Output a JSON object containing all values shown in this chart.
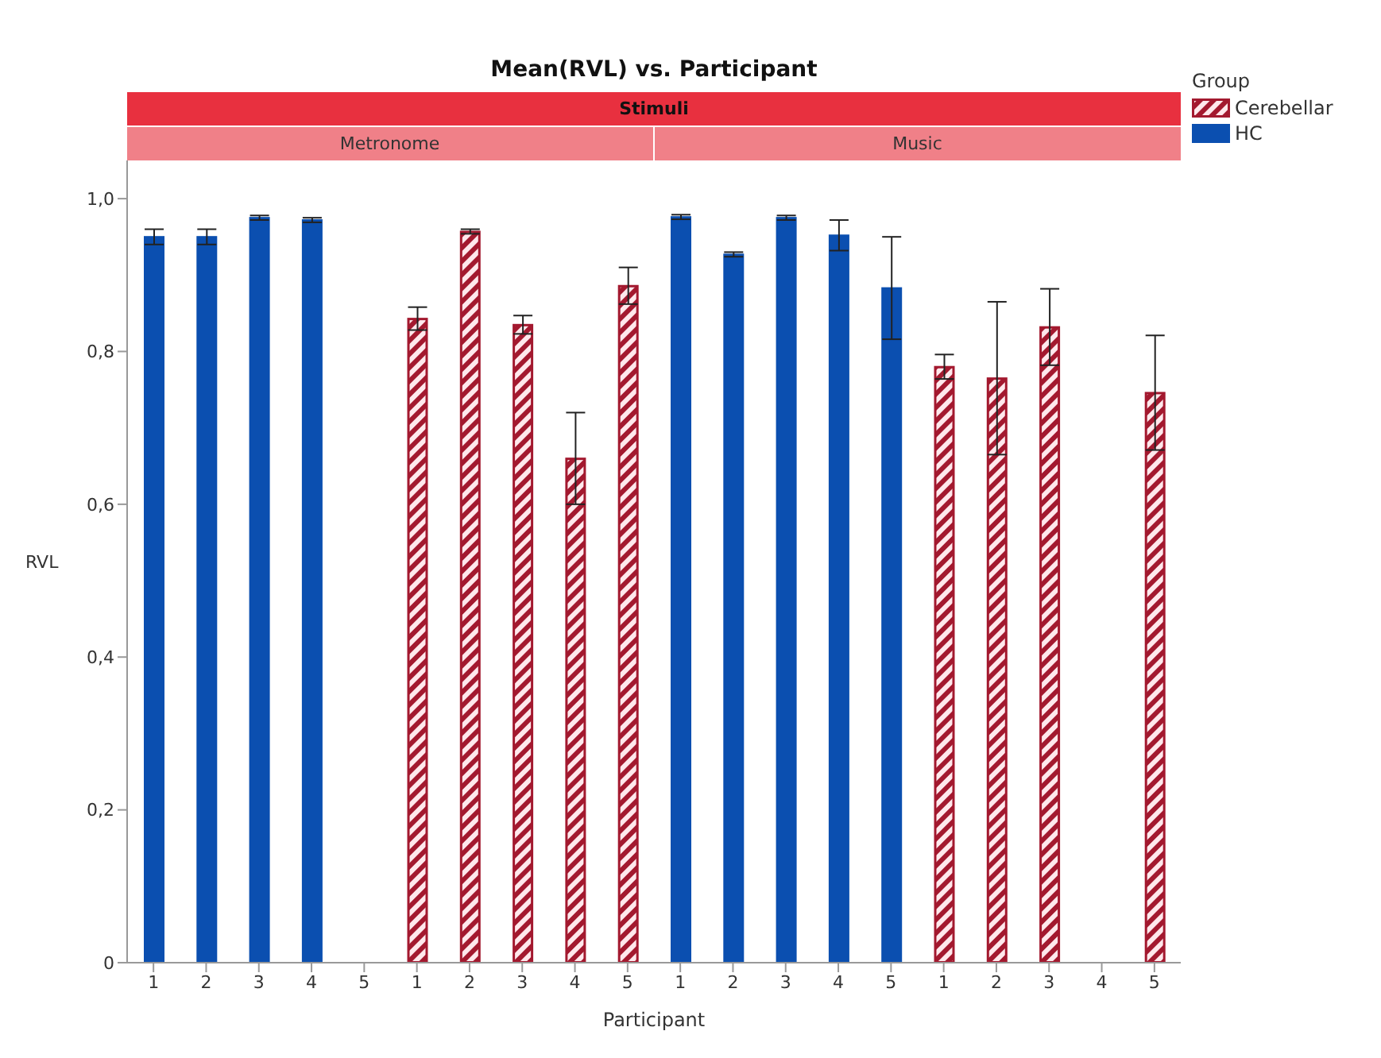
{
  "chart_data": {
    "type": "bar",
    "title": "Mean(RVL) vs. Participant",
    "xlabel": "Participant",
    "ylabel": "RVL",
    "legend_title": "Group",
    "annotations": [
      "Stimuli",
      "Metronome",
      "Music"
    ],
    "categories": [
      "1",
      "2",
      "3",
      "4",
      "5",
      "1",
      "2",
      "3",
      "4",
      "5",
      "1",
      "2",
      "3",
      "4",
      "5",
      "1",
      "2",
      "3",
      "4",
      "5"
    ],
    "series": [
      {
        "name": "Cerebellar",
        "color": "#a3192f",
        "values": [
          null,
          null,
          null,
          null,
          null,
          0.843,
          0.957,
          0.835,
          0.66,
          0.886,
          null,
          null,
          null,
          null,
          null,
          0.78,
          0.765,
          0.832,
          null,
          0.746
        ],
        "errors": [
          null,
          null,
          null,
          null,
          null,
          0.015,
          0.003,
          0.012,
          0.06,
          0.024,
          null,
          null,
          null,
          null,
          null,
          0.016,
          0.1,
          0.05,
          null,
          0.075
        ]
      },
      {
        "name": "HC",
        "color": "#0b4fb0",
        "values": [
          0.95,
          0.95,
          0.975,
          0.972,
          null,
          null,
          null,
          null,
          null,
          null,
          0.976,
          0.927,
          0.975,
          0.952,
          0.883,
          null,
          null,
          null,
          null,
          null
        ],
        "errors": [
          0.01,
          0.01,
          0.003,
          0.003,
          null,
          null,
          null,
          null,
          null,
          null,
          0.003,
          0.003,
          0.003,
          0.02,
          0.067,
          null,
          null,
          null,
          null,
          null
        ]
      }
    ],
    "ylim": [
      0,
      1.05
    ],
    "yticks": [
      {
        "value": 0,
        "label": "0"
      },
      {
        "value": 0.2,
        "label": "0,2"
      },
      {
        "value": 0.4,
        "label": "0,4"
      },
      {
        "value": 0.6,
        "label": "0,6"
      },
      {
        "value": 0.8,
        "label": "0,8"
      },
      {
        "value": 1,
        "label": "1,0"
      }
    ],
    "grid": false,
    "legend": "top right"
  }
}
